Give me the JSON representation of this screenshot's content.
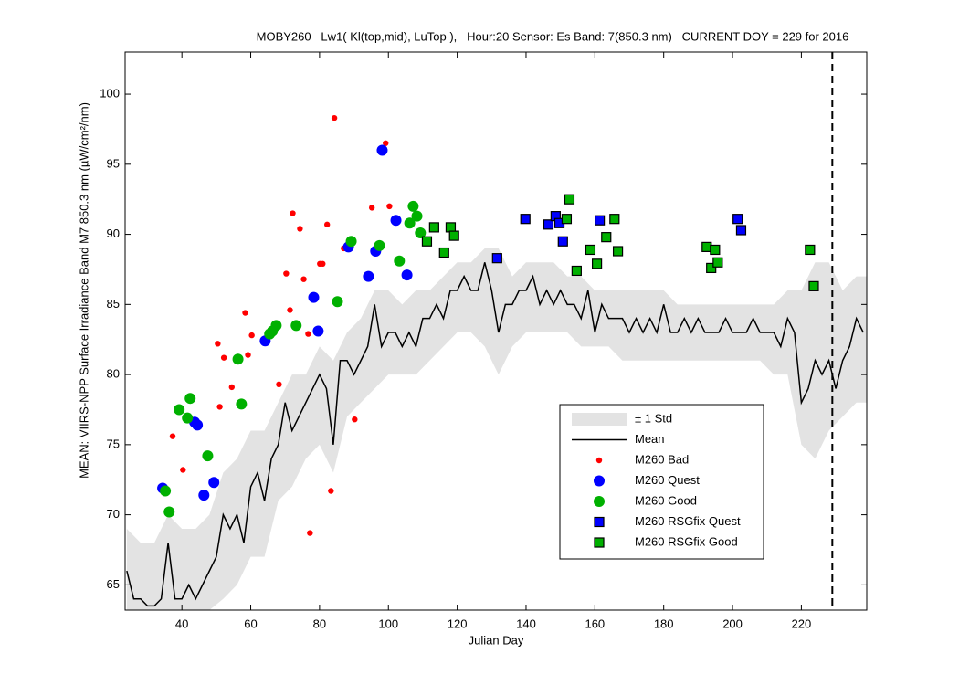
{
  "chart_data": {
    "type": "scatter",
    "title": "MOBY260   Lw1( Kl(top,mid), LuTop ),   Hour:20 Sensor: Es Band: 7(850.3 nm)   CURRENT DOY = 229 for 2016",
    "xlabel": "Julian Day",
    "ylabel": "MEAN: VIIRS-NPP Surface Irradiance Band M7 850.3 nm (µW/cm²/nm)",
    "xlim": [
      23.5,
      239
    ],
    "ylim": [
      63.2,
      103
    ],
    "xticks": [
      40,
      60,
      80,
      100,
      120,
      140,
      160,
      180,
      200,
      220
    ],
    "yticks": [
      65,
      70,
      75,
      80,
      85,
      90,
      95,
      100
    ],
    "current_doy": 229,
    "legend": "lower right",
    "std_band": {
      "name": "± 1 Std",
      "color": "#e3e3e3",
      "x": [
        24,
        28,
        32,
        36,
        40,
        44,
        48,
        52,
        56,
        60,
        64,
        68,
        72,
        76,
        80,
        84,
        88,
        92,
        96,
        100,
        104,
        108,
        112,
        116,
        120,
        124,
        128,
        132,
        136,
        140,
        144,
        148,
        152,
        156,
        160,
        164,
        168,
        172,
        176,
        180,
        184,
        188,
        192,
        196,
        200,
        204,
        208,
        212,
        216,
        220,
        224,
        228,
        232,
        236,
        239
      ],
      "upper": [
        69,
        68,
        68,
        70,
        69,
        69,
        70,
        73,
        74,
        76,
        76,
        78,
        80,
        80,
        82,
        81,
        83,
        84,
        86,
        86,
        85,
        86,
        86,
        87,
        88,
        88,
        89,
        89,
        87,
        88,
        88,
        88,
        87,
        87,
        86,
        86,
        86,
        86,
        86,
        86,
        85,
        85,
        85,
        85,
        85,
        85,
        85,
        85,
        86,
        86,
        88,
        88,
        86,
        87,
        87
      ],
      "lower": [
        63.2,
        63.2,
        63.2,
        63.2,
        63.2,
        63.2,
        63.2,
        64,
        65,
        67,
        67,
        71,
        72,
        74,
        75,
        73,
        77,
        78,
        79,
        80,
        80,
        80,
        81,
        82,
        83,
        83,
        82,
        80,
        82,
        83,
        83,
        83,
        83,
        82,
        82,
        82,
        81,
        81,
        81,
        81,
        81,
        81,
        81,
        81,
        81,
        81,
        81,
        80,
        80,
        75,
        74,
        76,
        77,
        78,
        78
      ]
    },
    "mean": {
      "name": "Mean",
      "color": "#000000",
      "x": [
        24,
        26,
        28,
        30,
        32,
        34,
        36,
        38,
        40,
        42,
        44,
        46,
        48,
        50,
        52,
        54,
        56,
        58,
        60,
        62,
        64,
        66,
        68,
        70,
        72,
        74,
        76,
        78,
        80,
        82,
        84,
        86,
        88,
        90,
        92,
        94,
        96,
        98,
        100,
        102,
        104,
        106,
        108,
        110,
        112,
        114,
        116,
        118,
        120,
        122,
        124,
        126,
        128,
        130,
        132,
        134,
        136,
        138,
        140,
        142,
        144,
        146,
        148,
        150,
        152,
        154,
        156,
        158,
        160,
        162,
        164,
        166,
        168,
        170,
        172,
        174,
        176,
        178,
        180,
        182,
        184,
        186,
        188,
        190,
        192,
        194,
        196,
        198,
        200,
        202,
        204,
        206,
        208,
        210,
        212,
        214,
        216,
        218,
        220,
        222,
        224,
        226,
        228,
        230,
        232,
        234,
        236,
        238
      ],
      "values": [
        66,
        64,
        64,
        63.5,
        63.5,
        64,
        68,
        64,
        64,
        65,
        64,
        65,
        66,
        67,
        70,
        69,
        70,
        68,
        72,
        73,
        71,
        74,
        75,
        78,
        76,
        77,
        78,
        79,
        80,
        79,
        75,
        81,
        81,
        80,
        81,
        82,
        85,
        82,
        83,
        83,
        82,
        83,
        82,
        84,
        84,
        85,
        84,
        86,
        86,
        87,
        86,
        86,
        88,
        86,
        83,
        85,
        85,
        86,
        86,
        87,
        85,
        86,
        85,
        86,
        85,
        85,
        84,
        86,
        83,
        85,
        84,
        84,
        84,
        83,
        84,
        83,
        84,
        83,
        85,
        83,
        83,
        84,
        83,
        84,
        83,
        83,
        83,
        84,
        83,
        83,
        83,
        84,
        83,
        83,
        83,
        82,
        84,
        83,
        78,
        79,
        81,
        80,
        81,
        79,
        81,
        82,
        84,
        83
      ]
    },
    "series": [
      {
        "name": "M260 Bad",
        "color": "#ff0000",
        "marker": "dot",
        "x": [
          37.3,
          40.3,
          50.4,
          52.2,
          51.0,
          54.5,
          58.4,
          60.3,
          59.2,
          68.2,
          70.3,
          71.4,
          72.2,
          74.3,
          75.4,
          76.7,
          77.2,
          80.1,
          80.9,
          82.2,
          83.3,
          84.3,
          87.0,
          90.2,
          95.2,
          99.2,
          100.3
        ],
        "values": [
          75.6,
          73.2,
          82.2,
          81.2,
          77.7,
          79.1,
          84.4,
          82.8,
          81.4,
          79.3,
          87.2,
          84.6,
          91.5,
          90.4,
          86.8,
          82.9,
          68.7,
          87.9,
          87.9,
          90.7,
          71.7,
          98.3,
          89.0,
          76.8,
          91.9,
          96.5,
          92.0
        ]
      },
      {
        "name": "M260 Quest",
        "color": "#0000ff",
        "marker": "circle",
        "x": [
          34.4,
          43.7,
          44.5,
          46.4,
          49.3,
          64.2,
          78.3,
          79.6,
          88.4,
          94.2,
          96.3,
          98.2,
          102.2,
          105.4
        ],
        "values": [
          71.9,
          76.6,
          76.4,
          71.4,
          72.3,
          82.4,
          85.5,
          83.1,
          89.1,
          87.0,
          88.8,
          96.0,
          91.0,
          87.1
        ]
      },
      {
        "name": "M260 Good",
        "color": "#00b000",
        "marker": "circle",
        "x": [
          35.2,
          36.3,
          39.2,
          41.6,
          42.4,
          47.5,
          56.3,
          57.3,
          65.5,
          66.3,
          67.4,
          73.2,
          85.2,
          89.2,
          97.4,
          103.2,
          106.2,
          107.2,
          108.3,
          109.3
        ],
        "values": [
          71.7,
          70.2,
          77.5,
          76.9,
          78.3,
          74.2,
          81.1,
          77.9,
          82.9,
          83.1,
          83.5,
          83.5,
          85.2,
          89.5,
          89.2,
          88.1,
          90.8,
          92.0,
          91.3,
          90.1
        ]
      },
      {
        "name": "M260 RSGfix Quest",
        "color": "#0000ff",
        "marker": "square",
        "x": [
          131.6,
          139.8,
          146.5,
          148.6,
          149.7,
          150.7,
          161.4,
          201.5,
          202.5
        ],
        "values": [
          88.3,
          91.1,
          90.7,
          91.3,
          90.8,
          89.5,
          91.0,
          91.1,
          90.3
        ]
      },
      {
        "name": "M260 RSGfix Good",
        "color": "#00b000",
        "marker": "square",
        "x": [
          111.2,
          113.3,
          116.2,
          118.1,
          119.1,
          151.8,
          152.6,
          154.7,
          158.7,
          160.6,
          163.3,
          165.7,
          166.7,
          192.5,
          193.8,
          194.9,
          195.7,
          222.5,
          223.6
        ],
        "values": [
          89.5,
          90.5,
          88.7,
          90.5,
          89.9,
          91.1,
          92.5,
          87.4,
          88.9,
          87.9,
          89.8,
          91.1,
          88.8,
          89.1,
          87.6,
          88.9,
          88.0,
          88.9,
          86.3
        ]
      }
    ]
  }
}
